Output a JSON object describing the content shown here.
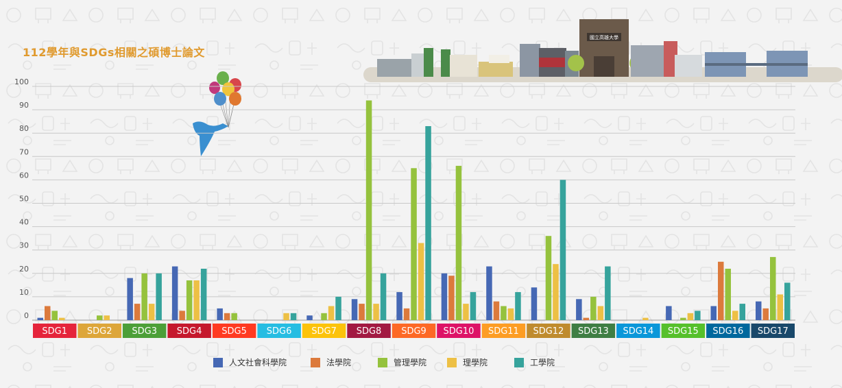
{
  "chart_data": {
    "type": "bar",
    "title": "112學年與SDGs相關之碩博士論文",
    "ylim": [
      0,
      100
    ],
    "yticks": [
      0,
      10,
      20,
      30,
      40,
      50,
      60,
      70,
      80,
      90,
      100
    ],
    "grid": true,
    "legend_position": "bottom",
    "categories": [
      "SDG1",
      "SDG2",
      "SDG3",
      "SDG4",
      "SDG5",
      "SDG6",
      "SDG7",
      "SDG8",
      "SDG9",
      "SDG10",
      "SDG11",
      "SDG12",
      "SDG13",
      "SDG14",
      "SDG15",
      "SDG16",
      "SDG17"
    ],
    "category_colors": [
      "#e5243b",
      "#dda63a",
      "#4c9f38",
      "#c5192d",
      "#ff3a21",
      "#26bde2",
      "#fcc30b",
      "#a21942",
      "#fd6925",
      "#dd1367",
      "#fd9d24",
      "#bf8b2e",
      "#3f7e44",
      "#0a97d9",
      "#56c02b",
      "#00689d",
      "#19486a"
    ],
    "series": [
      {
        "name": "人文社會科學院",
        "color": "#4668b4",
        "values": [
          1,
          0,
          18,
          23,
          5,
          0,
          2,
          9,
          12,
          20,
          23,
          14,
          9,
          0,
          6,
          6,
          8
        ]
      },
      {
        "name": "法學院",
        "color": "#dc7a3c",
        "values": [
          6,
          0,
          7,
          4,
          3,
          0,
          0,
          7,
          5,
          19,
          8,
          0,
          1,
          0,
          0,
          25,
          5
        ]
      },
      {
        "name": "管理學院",
        "color": "#95c23d",
        "values": [
          4,
          2,
          20,
          17,
          3,
          0,
          3,
          94,
          65,
          66,
          6,
          36,
          10,
          0,
          1,
          22,
          27
        ]
      },
      {
        "name": "理學院",
        "color": "#edc045",
        "values": [
          1,
          2,
          7,
          17,
          0,
          3,
          6,
          7,
          33,
          7,
          5,
          24,
          6,
          1,
          3,
          4,
          11
        ]
      },
      {
        "name": "工學院",
        "color": "#36a39c",
        "values": [
          0,
          0,
          20,
          22,
          0,
          3,
          10,
          20,
          83,
          12,
          12,
          60,
          23,
          0,
          4,
          7,
          16
        ]
      }
    ]
  },
  "building_sign": "國立高雄大學"
}
